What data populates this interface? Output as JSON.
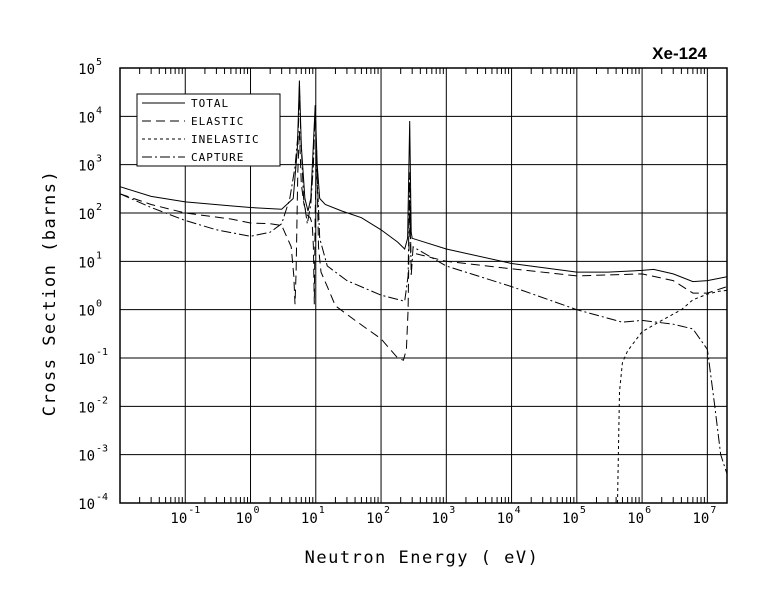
{
  "chart_data": {
    "type": "line",
    "title": "Xe-124",
    "xlabel": "Neutron Energy ( eV)",
    "ylabel": "Cross Section (barns)",
    "xscale": "log",
    "yscale": "log",
    "xlim": [
      0.01,
      20000000
    ],
    "ylim": [
      0.0001,
      100000
    ],
    "grid": true,
    "legend_position": "top-left",
    "x_ticks": [
      {
        "base": "10",
        "exp": "-1",
        "value": 0.1
      },
      {
        "base": "10",
        "exp": "0",
        "value": 1
      },
      {
        "base": "10",
        "exp": "1",
        "value": 10
      },
      {
        "base": "10",
        "exp": "2",
        "value": 100
      },
      {
        "base": "10",
        "exp": "3",
        "value": 1000
      },
      {
        "base": "10",
        "exp": "4",
        "value": 10000
      },
      {
        "base": "10",
        "exp": "5",
        "value": 100000
      },
      {
        "base": "10",
        "exp": "6",
        "value": 1000000
      },
      {
        "base": "10",
        "exp": "7",
        "value": 10000000
      }
    ],
    "y_ticks": [
      {
        "base": "10",
        "exp": "5",
        "value": 100000
      },
      {
        "base": "10",
        "exp": "4",
        "value": 10000
      },
      {
        "base": "10",
        "exp": "3",
        "value": 1000
      },
      {
        "base": "10",
        "exp": "2",
        "value": 100
      },
      {
        "base": "10",
        "exp": "1",
        "value": 10
      },
      {
        "base": "10",
        "exp": "0",
        "value": 1
      },
      {
        "base": "10",
        "exp": "-1",
        "value": 0.1
      },
      {
        "base": "10",
        "exp": "-2",
        "value": 0.01
      },
      {
        "base": "10",
        "exp": "-3",
        "value": 0.001
      },
      {
        "base": "10",
        "exp": "-4",
        "value": 0.0001
      }
    ],
    "series": [
      {
        "name": "TOTAL",
        "dash": "solid",
        "points": [
          [
            0.01,
            350
          ],
          [
            0.03,
            220
          ],
          [
            0.1,
            170
          ],
          [
            0.5,
            140
          ],
          [
            1,
            130
          ],
          [
            3,
            120
          ],
          [
            4.5,
            200
          ],
          [
            5.2,
            2000
          ],
          [
            5.6,
            55000
          ],
          [
            6,
            2500
          ],
          [
            6.8,
            200
          ],
          [
            7.6,
            110
          ],
          [
            8.4,
            200
          ],
          [
            9,
            1500
          ],
          [
            9.8,
            17000
          ],
          [
            10.5,
            1000
          ],
          [
            11.5,
            200
          ],
          [
            14,
            150
          ],
          [
            25,
            110
          ],
          [
            50,
            80
          ],
          [
            100,
            45
          ],
          [
            180,
            25
          ],
          [
            230,
            18
          ],
          [
            255,
            30
          ],
          [
            275,
            8000
          ],
          [
            290,
            40
          ],
          [
            300,
            30
          ],
          [
            1000,
            18
          ],
          [
            10000,
            9
          ],
          [
            100000,
            6
          ],
          [
            300000,
            6
          ],
          [
            1000000,
            6.5
          ],
          [
            1500000,
            6.8
          ],
          [
            3000000,
            5.5
          ],
          [
            6000000,
            3.8
          ],
          [
            10000000,
            4
          ],
          [
            20000000,
            4.8
          ]
        ]
      },
      {
        "name": "ELASTIC",
        "dash": "long-dash",
        "points": [
          [
            0.01,
            250
          ],
          [
            0.03,
            150
          ],
          [
            0.1,
            100
          ],
          [
            0.5,
            75
          ],
          [
            1,
            62
          ],
          [
            2,
            60
          ],
          [
            3,
            55
          ],
          [
            4.2,
            20
          ],
          [
            4.6,
            5
          ],
          [
            4.8,
            1.3
          ],
          [
            5.0,
            6
          ],
          [
            5.3,
            700
          ],
          [
            5.6,
            5000
          ],
          [
            6,
            400
          ],
          [
            6.6,
            150
          ],
          [
            7.4,
            90
          ],
          [
            8.2,
            80
          ],
          [
            8.8,
            60
          ],
          [
            9.2,
            20
          ],
          [
            9.5,
            1.3
          ],
          [
            9.8,
            100
          ],
          [
            10.3,
            2000
          ],
          [
            11,
            20
          ],
          [
            12,
            6
          ],
          [
            15,
            3
          ],
          [
            20,
            1.2
          ],
          [
            40,
            0.6
          ],
          [
            100,
            0.25
          ],
          [
            180,
            0.1
          ],
          [
            220,
            0.09
          ],
          [
            245,
            0.15
          ],
          [
            260,
            1
          ],
          [
            275,
            200
          ],
          [
            285,
            15
          ],
          [
            300,
            15
          ],
          [
            1000,
            10
          ],
          [
            10000,
            7
          ],
          [
            100000,
            5
          ],
          [
            1000000,
            5.5
          ],
          [
            3000000,
            4
          ],
          [
            6000000,
            2.2
          ],
          [
            10000000,
            2.2
          ],
          [
            20000000,
            3
          ]
        ]
      },
      {
        "name": "INELASTIC",
        "dash": "short-dash",
        "points": [
          [
            420000,
            0.0001
          ],
          [
            450000,
            0.02
          ],
          [
            500000,
            0.08
          ],
          [
            600000,
            0.14
          ],
          [
            1000000,
            0.35
          ],
          [
            2000000,
            0.6
          ],
          [
            4000000,
            1.0
          ],
          [
            6000000,
            1.6
          ],
          [
            10000000,
            2.1
          ],
          [
            15000000,
            2.4
          ],
          [
            20000000,
            2.5
          ]
        ]
      },
      {
        "name": "CAPTURE",
        "dash": "dash-dot",
        "points": [
          [
            0.01,
            250
          ],
          [
            0.03,
            130
          ],
          [
            0.1,
            70
          ],
          [
            0.3,
            45
          ],
          [
            1,
            33
          ],
          [
            2,
            40
          ],
          [
            3,
            60
          ],
          [
            4,
            200
          ],
          [
            4.8,
            900
          ],
          [
            5.4,
            5000
          ],
          [
            5.6,
            40000
          ],
          [
            5.9,
            4000
          ],
          [
            6.5,
            200
          ],
          [
            7.4,
            60
          ],
          [
            8.4,
            150
          ],
          [
            9.2,
            1000
          ],
          [
            9.8,
            15000
          ],
          [
            10.4,
            800
          ],
          [
            11.5,
            30
          ],
          [
            15,
            8
          ],
          [
            30,
            4
          ],
          [
            100,
            2
          ],
          [
            230,
            1.5
          ],
          [
            260,
            5
          ],
          [
            275,
            700
          ],
          [
            290,
            5
          ],
          [
            310,
            20
          ],
          [
            1000,
            8
          ],
          [
            10000,
            3
          ],
          [
            100000,
            1
          ],
          [
            500000,
            0.55
          ],
          [
            1000000,
            0.6
          ],
          [
            3000000,
            0.5
          ],
          [
            6000000,
            0.4
          ],
          [
            10000000,
            0.15
          ],
          [
            13000000,
            0.01
          ],
          [
            16000000,
            0.001
          ],
          [
            20000000,
            0.0004
          ]
        ]
      }
    ]
  }
}
